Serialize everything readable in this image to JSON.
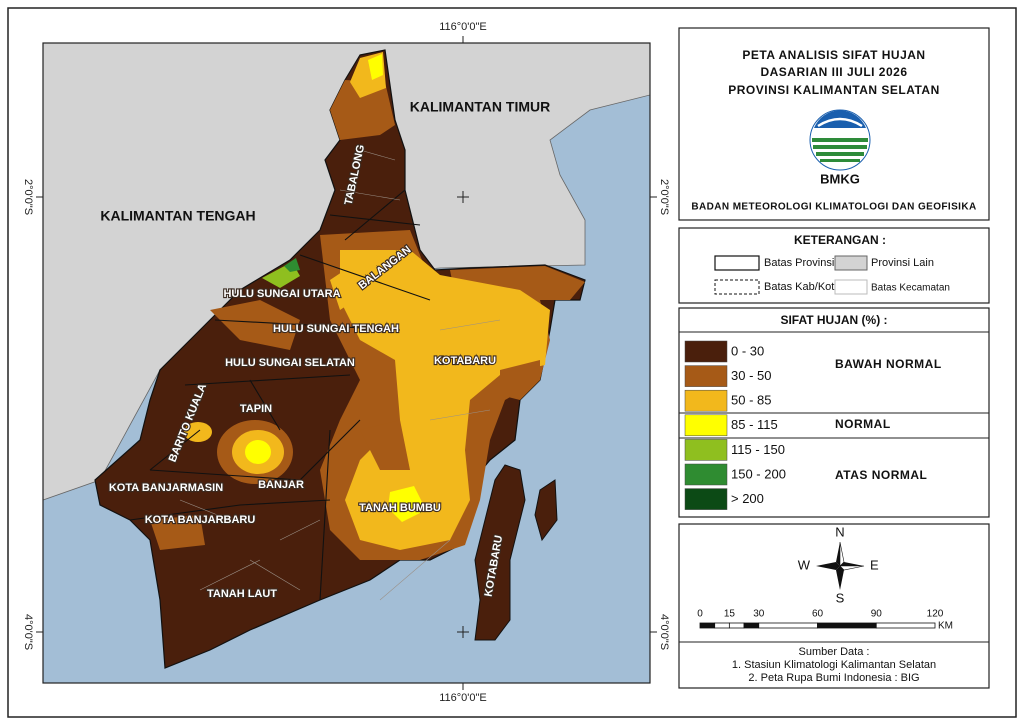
{
  "map": {
    "coordinates": {
      "top": "116°0'0\"E",
      "bottom": "116°0'0\"E",
      "left_upper": "2°0'0\"S",
      "right_upper": "2°0'0\"S",
      "left_lower": "4°0'0\"S",
      "right_lower": "4°0'0\"S"
    },
    "other_provinces": [
      "KALIMANTAN TIMUR",
      "KALIMANTAN TENGAH"
    ],
    "regions": [
      "TABALONG",
      "BALANGAN",
      "HULU SUNGAI UTARA",
      "HULU SUNGAI TENGAH",
      "HULU SUNGAI SELATAN",
      "KOTABARU",
      "TAPIN",
      "BARITO KUALA",
      "KOTA BANJARMASIN",
      "BANJAR",
      "KOTA BANJARBARU",
      "TANAH BUMBU",
      "TANAH LAUT",
      "KOTABARU"
    ]
  },
  "title": {
    "lines": [
      "PETA ANALISIS SIFAT HUJAN",
      "DASARIAN III JULI 2026",
      "PROVINSI KALIMANTAN SELATAN"
    ],
    "logo": "BMKG",
    "agency": "BADAN METEOROLOGI KLIMATOLOGI DAN GEOFISIKA"
  },
  "keterangan": {
    "title": "KETERANGAN :",
    "items": [
      "Batas Provinsi",
      "Provinsi Lain",
      "Batas Kab/Kota",
      "Batas Kecamatan"
    ]
  },
  "legend": {
    "title": "SIFAT HUJAN (%) :",
    "classes": [
      {
        "label": "0 - 30",
        "color": "#4a1f0c"
      },
      {
        "label": "30 - 50",
        "color": "#a65a17"
      },
      {
        "label": "50 - 85",
        "color": "#f2b81c"
      },
      {
        "label": "85 - 115",
        "color": "#ffff00"
      },
      {
        "label": "115 - 150",
        "color": "#8fbf1f"
      },
      {
        "label": "150 - 200",
        "color": "#2f8c31"
      },
      {
        "label": "> 200",
        "color": "#0c4a15"
      }
    ],
    "groups": [
      "BAWAH NORMAL",
      "NORMAL",
      "ATAS NORMAL"
    ]
  },
  "compass": {
    "north": "N",
    "south": "S",
    "east": "E",
    "west": "W"
  },
  "scale": {
    "ticks": [
      0,
      15,
      30,
      60,
      90,
      120
    ],
    "unit": "KM"
  },
  "source": {
    "title": "Sumber Data :",
    "items": [
      "1. Stasiun Klimatologi Kalimantan Selatan",
      "2. Peta Rupa Bumi Indonesia : BIG"
    ]
  }
}
